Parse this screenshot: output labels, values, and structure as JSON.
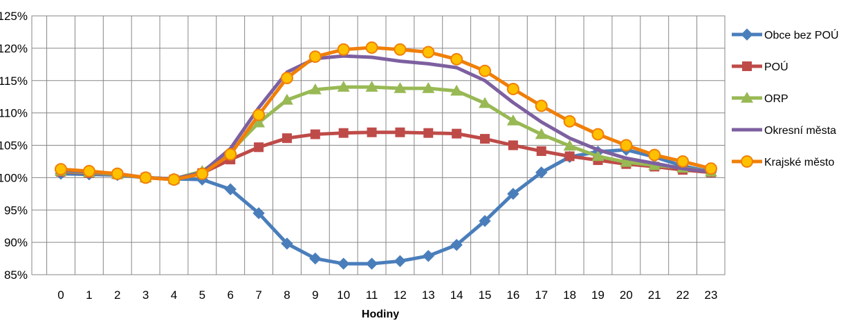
{
  "chart_data": {
    "type": "line",
    "xlabel": "Hodiny",
    "ylabel": "",
    "x": [
      0,
      1,
      2,
      3,
      4,
      5,
      6,
      7,
      8,
      9,
      10,
      11,
      12,
      13,
      14,
      15,
      16,
      17,
      18,
      19,
      20,
      21,
      22,
      23
    ],
    "x_tick_labels": [
      "0",
      "1",
      "2",
      "3",
      "4",
      "5",
      "6",
      "7",
      "8",
      "9",
      "10",
      "11",
      "12",
      "13",
      "14",
      "15",
      "16",
      "17",
      "18",
      "19",
      "20",
      "21",
      "22",
      "23"
    ],
    "ylim": [
      85,
      125
    ],
    "y_ticks": [
      85,
      90,
      95,
      100,
      105,
      110,
      115,
      120,
      125
    ],
    "y_tick_labels": [
      "85%",
      "90%",
      "95%",
      "100%",
      "105%",
      "110%",
      "115%",
      "120%",
      "125%"
    ],
    "grid": true,
    "legend_position": "right",
    "series": [
      {
        "name": "Obce bez POÚ",
        "color": "#4A7EBB",
        "marker": "diamond",
        "values": [
          100.6,
          100.5,
          100.4,
          100.0,
          99.8,
          99.7,
          98.2,
          94.5,
          89.8,
          87.5,
          86.7,
          86.7,
          87.1,
          87.9,
          89.6,
          93.3,
          97.5,
          100.8,
          103.2,
          104.0,
          104.3,
          103.2,
          101.8,
          100.9
        ]
      },
      {
        "name": "POÚ",
        "color": "#BE4B48",
        "marker": "square",
        "values": [
          100.9,
          100.7,
          100.5,
          100.0,
          99.7,
          100.7,
          102.8,
          104.7,
          106.1,
          106.7,
          106.9,
          107.0,
          107.0,
          106.9,
          106.8,
          106.0,
          105.0,
          104.1,
          103.3,
          102.7,
          102.1,
          101.7,
          101.2,
          100.8
        ]
      },
      {
        "name": "ORP",
        "color": "#98B954",
        "marker": "triangle",
        "values": [
          101.0,
          100.8,
          100.5,
          100.0,
          99.8,
          101.0,
          104.0,
          108.5,
          112.0,
          113.6,
          114.0,
          114.0,
          113.8,
          113.8,
          113.4,
          111.5,
          108.8,
          106.7,
          104.9,
          103.3,
          102.4,
          101.9,
          101.5,
          100.9
        ]
      },
      {
        "name": "Okresní města",
        "color": "#7D60A0",
        "marker": "none",
        "values": [
          101.1,
          100.9,
          100.6,
          100.0,
          99.8,
          100.8,
          104.5,
          110.8,
          116.3,
          118.4,
          118.8,
          118.6,
          118.0,
          117.6,
          117.0,
          115.0,
          111.6,
          108.6,
          106.1,
          104.3,
          103.0,
          102.2,
          101.4,
          100.9
        ]
      },
      {
        "name": "Krajské město",
        "color": "#F07F09",
        "marker": "circle",
        "values": [
          101.3,
          101.0,
          100.6,
          100.0,
          99.7,
          100.6,
          103.6,
          109.7,
          115.4,
          118.7,
          119.8,
          120.1,
          119.8,
          119.4,
          118.3,
          116.5,
          113.7,
          111.1,
          108.7,
          106.7,
          105.0,
          103.5,
          102.5,
          101.4
        ]
      }
    ]
  }
}
